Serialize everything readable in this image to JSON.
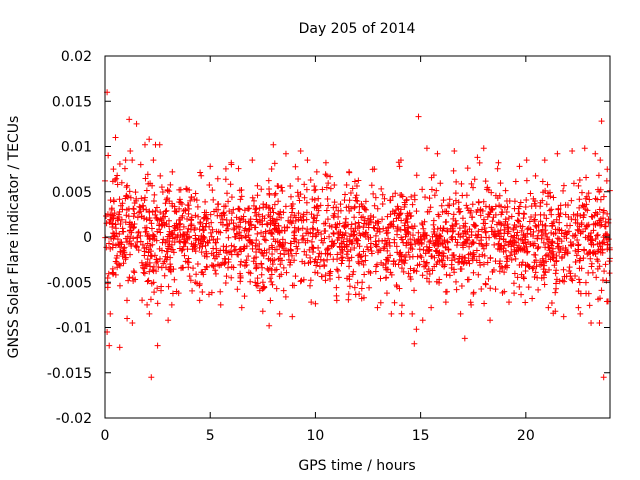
{
  "chart_data": {
    "type": "scatter",
    "title": "Day 205 of 2014",
    "xlabel": "GPS time / hours",
    "ylabel": "GNSS Solar Flare indicator / TECUs",
    "xlim": [
      0,
      24
    ],
    "ylim": [
      -0.02,
      0.02
    ],
    "x_ticks": [
      0,
      5,
      10,
      15,
      20
    ],
    "x_tick_labels": [
      "0",
      "5",
      "10",
      "15",
      "20"
    ],
    "y_ticks": [
      -0.02,
      -0.015,
      -0.01,
      -0.005,
      0,
      0.005,
      0.01,
      0.015,
      0.02
    ],
    "y_tick_labels": [
      "-0.02",
      "-0.015",
      "-0.01",
      "-0.005",
      "0",
      "0.005",
      "0.01",
      "0.015",
      "0.02"
    ],
    "grid": false,
    "legend": "none",
    "marker": "+",
    "color": "#ff0000",
    "series": [
      {
        "points": [
          [
            0.0,
            0.0062
          ],
          [
            0.1,
            0.016
          ],
          [
            0.1,
            -0.0105
          ],
          [
            0.15,
            0.009
          ],
          [
            0.2,
            -0.012
          ],
          [
            0.25,
            -0.0085
          ],
          [
            0.4,
            0.0075
          ],
          [
            0.5,
            0.011
          ],
          [
            0.6,
            0.0058
          ],
          [
            0.7,
            -0.0122
          ],
          [
            0.8,
            0.006
          ],
          [
            1.0,
            0.0045
          ],
          [
            1.05,
            -0.009
          ],
          [
            1.15,
            0.013
          ],
          [
            1.2,
            0.0095
          ],
          [
            1.3,
            -0.0095
          ],
          [
            1.5,
            0.0125
          ],
          [
            1.7,
            0.008
          ],
          [
            1.9,
            0.0102
          ],
          [
            2.0,
            -0.0075
          ],
          [
            2.1,
            0.0108
          ],
          [
            2.2,
            -0.0155
          ],
          [
            2.3,
            0.0085
          ],
          [
            2.4,
            0.0102
          ],
          [
            2.5,
            -0.012
          ],
          [
            2.6,
            0.0102
          ],
          [
            3.0,
            -0.0092
          ],
          [
            3.2,
            0.0072
          ],
          [
            3.5,
            -0.0062
          ],
          [
            4.0,
            0.0052
          ],
          [
            4.5,
            -0.007
          ],
          [
            5.0,
            0.0078
          ],
          [
            5.5,
            -0.0075
          ],
          [
            6.0,
            0.0082
          ],
          [
            6.5,
            -0.0078
          ],
          [
            7.0,
            0.0085
          ],
          [
            7.5,
            -0.0082
          ],
          [
            7.8,
            -0.0098
          ],
          [
            8.0,
            0.0102
          ],
          [
            8.3,
            -0.0085
          ],
          [
            8.6,
            0.0092
          ],
          [
            8.9,
            -0.0088
          ],
          [
            9.3,
            0.0095
          ],
          [
            9.8,
            -0.0072
          ],
          [
            10.5,
            0.0082
          ],
          [
            11.0,
            -0.0065
          ],
          [
            11.6,
            0.0072
          ],
          [
            12.2,
            -0.0068
          ],
          [
            12.8,
            0.0075
          ],
          [
            13.4,
            -0.0062
          ],
          [
            14.0,
            0.0078
          ],
          [
            14.6,
            -0.0085
          ],
          [
            14.7,
            -0.0118
          ],
          [
            14.8,
            -0.0102
          ],
          [
            14.9,
            0.0133
          ],
          [
            15.1,
            -0.0092
          ],
          [
            15.3,
            0.0098
          ],
          [
            15.5,
            -0.0078
          ],
          [
            15.8,
            0.0092
          ],
          [
            16.2,
            -0.0072
          ],
          [
            16.6,
            0.0095
          ],
          [
            16.9,
            -0.0085
          ],
          [
            17.1,
            -0.0112
          ],
          [
            17.4,
            -0.0075
          ],
          [
            17.7,
            0.0088
          ],
          [
            18.0,
            0.0098
          ],
          [
            18.3,
            -0.0092
          ],
          [
            18.7,
            0.0082
          ],
          [
            19.2,
            -0.0072
          ],
          [
            19.7,
            0.0078
          ],
          [
            20.3,
            -0.0068
          ],
          [
            20.9,
            0.0085
          ],
          [
            21.4,
            -0.0082
          ],
          [
            21.5,
            0.0092
          ],
          [
            21.8,
            -0.0088
          ],
          [
            22.2,
            0.0095
          ],
          [
            22.5,
            -0.0078
          ],
          [
            22.8,
            0.0098
          ],
          [
            23.1,
            -0.0095
          ],
          [
            23.3,
            0.0092
          ],
          [
            23.5,
            -0.0095
          ],
          [
            23.6,
            0.0128
          ],
          [
            23.7,
            -0.0155
          ],
          [
            23.85,
            0.0062
          ]
        ],
        "bulk": {
          "count": 2300,
          "x_range": [
            0,
            24
          ],
          "y_std": 0.003,
          "y_clip": [
            -0.0085,
            0.0085
          ]
        }
      }
    ]
  }
}
